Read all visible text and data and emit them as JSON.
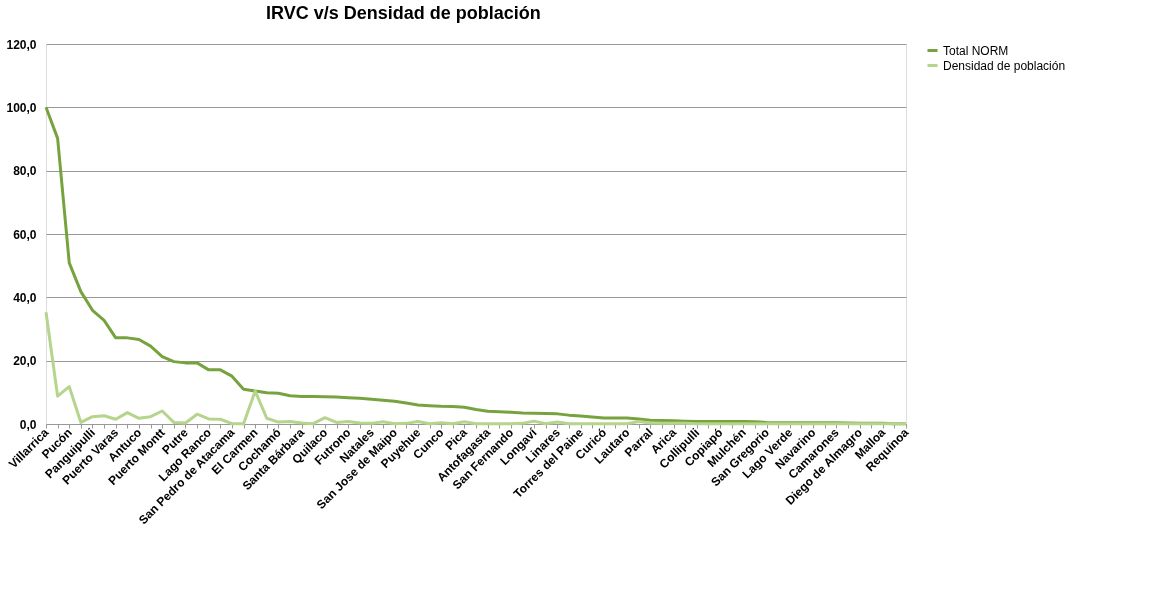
{
  "chart_data": {
    "type": "line",
    "title": "IRVC v/s Densidad de población",
    "categories": [
      "Villarrica",
      null,
      "Pucón",
      null,
      "Panguipulli",
      null,
      "Puerto Varas",
      null,
      "Antuco",
      null,
      "Puerto Montt",
      null,
      "Putre",
      null,
      "Lago Ranco",
      null,
      "San Pedro de Atacama",
      null,
      "El Carmen",
      null,
      "Cochamó",
      null,
      "Santa Bárbara",
      null,
      "Quilaco",
      null,
      "Futrono",
      null,
      "Natales",
      null,
      "San Jose de Maipo",
      null,
      "Puyehue",
      null,
      "Cunco",
      null,
      "Pica",
      null,
      "Antofagasta",
      null,
      "San Fernando",
      null,
      "Longaví",
      null,
      "Linares",
      null,
      "Torres del Paine",
      null,
      "Curicó",
      null,
      "Lautaro",
      null,
      "Parral",
      null,
      "Arica",
      null,
      "Collipulli",
      null,
      "Copiapó",
      null,
      "Mulchén",
      null,
      "San Gregorio",
      null,
      "Lago Verde",
      null,
      "Navarino",
      null,
      "Camarones",
      null,
      "Diego de Almagro",
      null,
      "Malloa",
      null,
      "Requínoa"
    ],
    "series": [
      {
        "name": "Total NORM",
        "color": "#77a33f",
        "values": [
          100,
          90.2,
          50.9,
          41.8,
          35.9,
          32.7,
          27.2,
          27.2,
          26.7,
          24.6,
          21.3,
          19.7,
          19.3,
          19.3,
          17.1,
          17.1,
          15.1,
          11.0,
          10.4,
          9.9,
          9.7,
          8.9,
          8.7,
          8.7,
          8.6,
          8.5,
          8.3,
          8.1,
          7.8,
          7.5,
          7.2,
          6.6,
          6.0,
          5.8,
          5.6,
          5.5,
          5.3,
          4.6,
          4.0,
          3.9,
          3.7,
          3.5,
          3.4,
          3.3,
          3.2,
          2.8,
          2.5,
          2.2,
          1.9,
          1.9,
          1.9,
          1.6,
          1.2,
          1.1,
          1.0,
          0.9,
          0.8,
          0.8,
          0.8,
          0.8,
          0.8,
          0.7,
          0.5,
          0.4,
          0.4,
          0.4,
          0.4,
          0.4,
          0.4,
          0.3,
          0.2,
          0.2,
          0.2,
          0.1,
          0.1
        ]
      },
      {
        "name": "Densidad de población",
        "color": "#b5d48c",
        "values": [
          35.3,
          8.8,
          11.8,
          0.5,
          2.3,
          2.6,
          1.5,
          3.6,
          1.8,
          2.3,
          4.1,
          0.5,
          0.3,
          3.1,
          1.6,
          1.5,
          0.1,
          0.1,
          10.4,
          1.8,
          0.6,
          0.8,
          0.3,
          0.1,
          2.0,
          0.5,
          0.8,
          0.3,
          0.2,
          0.7,
          0.1,
          0.2,
          0.8,
          0.1,
          0.4,
          0.1,
          0.7,
          0.1,
          0.1,
          0.1,
          0.1,
          0.2,
          0.9,
          0.1,
          0.6,
          0.1,
          0.1,
          0.1,
          0.1,
          0.1,
          0.1,
          0.8,
          0.3,
          0.2,
          0.2,
          0.2,
          0.1,
          0.1,
          0.1,
          0.1,
          0.1,
          0.1,
          0.1,
          0.1,
          0.1,
          0.1,
          0.1,
          0.1,
          0.1,
          0.1,
          0.1,
          0.1,
          0.1,
          0.1,
          0.1
        ]
      }
    ],
    "ylim": [
      0,
      120
    ],
    "yticks": [
      {
        "value": 0,
        "label": "0,0"
      },
      {
        "value": 20,
        "label": "20,0"
      },
      {
        "value": 40,
        "label": "40,0"
      },
      {
        "value": 60,
        "label": "60,0"
      },
      {
        "value": 80,
        "label": "80,0"
      },
      {
        "value": 100,
        "label": "100,0"
      },
      {
        "value": 120,
        "label": "120,0"
      }
    ],
    "grid": "y",
    "legend": "right",
    "marker": "none",
    "line_style": "solid"
  }
}
